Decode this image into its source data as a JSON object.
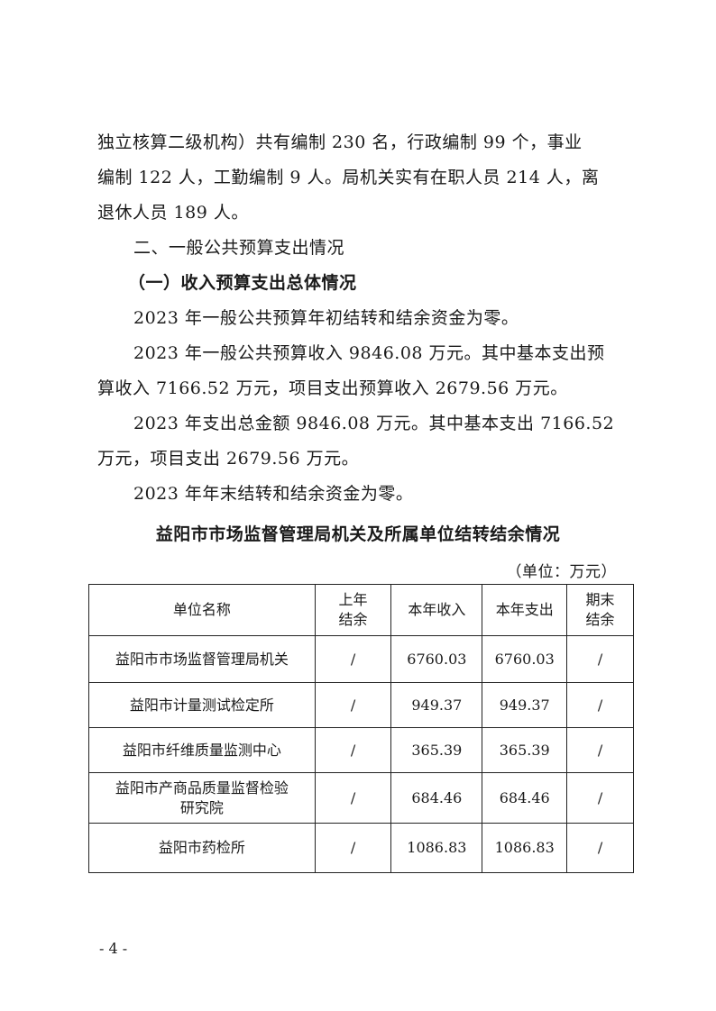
{
  "paragraphs": [
    "独立核算二级机构）共有编制 230 名，行政编制 99 个，事业",
    "编制 122 人，工勤编制 9 人。局机关实有在职人员 214 人，离",
    "退休人员 189 人。"
  ],
  "section_heading": "二、一般公共预算支出情况",
  "sub_heading": "（一）收入预算支出总体情况",
  "body": [
    "2023 年一般公共预算年初结转和结余资金为零。",
    "2023 年一般公共预算收入 9846.08 万元。其中基本支出预",
    "算收入 7166.52 万元，项目支出预算收入 2679.56 万元。",
    "2023 年支出总金额 9846.08 万元。其中基本支出 7166.52",
    "万元，项目支出 2679.56 万元。",
    "2023 年年末结转和结余资金为零。"
  ],
  "table_title": "益阳市市场监督管理局机关及所属单位结转结余情况",
  "unit": "（单位：万元）",
  "table": {
    "headers": [
      "单位名称",
      "上年结余",
      "本年收入",
      "本年支出",
      "期末结余"
    ],
    "rows": [
      [
        "益阳市市场监督管理局机关",
        "/",
        "6760.03",
        "6760.03",
        "/"
      ],
      [
        "益阳市计量测试检定所",
        "/",
        "949.37",
        "949.37",
        "/"
      ],
      [
        "益阳市纤维质量监测中心",
        "/",
        "365.39",
        "365.39",
        "/"
      ],
      [
        "益阳市产商品质量监督检验研究院",
        "/",
        "684.46",
        "684.46",
        "/"
      ],
      [
        "益阳市药检所",
        "/",
        "1086.83",
        "1086.83",
        "/"
      ]
    ]
  },
  "page_number": "- 4 -"
}
